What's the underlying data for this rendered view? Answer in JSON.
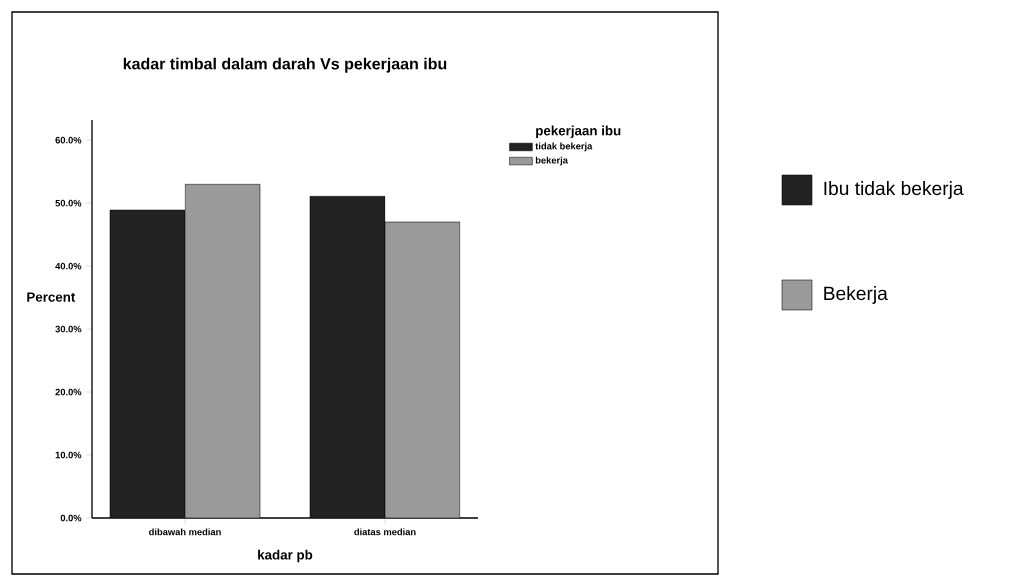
{
  "chart_data": {
    "type": "bar",
    "title": "kadar timbal dalam darah Vs pekerjaan ibu",
    "xlabel": "kadar pb",
    "ylabel": "Percent",
    "legend_title": "pekerjaan ibu",
    "categories": [
      "dibawah median",
      "diatas median"
    ],
    "series": [
      {
        "name": "tidak bekerja",
        "color": "#222222",
        "values": [
          48.9,
          51.1
        ]
      },
      {
        "name": "bekerja",
        "color": "#9a9a9a",
        "values": [
          53.0,
          47.0
        ]
      }
    ],
    "ylim": [
      0,
      63.2
    ],
    "yticks": [
      {
        "value": 0,
        "label": "0.0%"
      },
      {
        "value": 10,
        "label": "10.0%"
      },
      {
        "value": 20,
        "label": "20.0%"
      },
      {
        "value": 30,
        "label": "30.0%"
      },
      {
        "value": 40,
        "label": "40.0%"
      },
      {
        "value": 50,
        "label": "50.0%"
      },
      {
        "value": 60,
        "label": "60.0%"
      }
    ],
    "legend": "top right",
    "annotations": [
      "Ibu tidak bekerja",
      "Bekerja"
    ]
  }
}
